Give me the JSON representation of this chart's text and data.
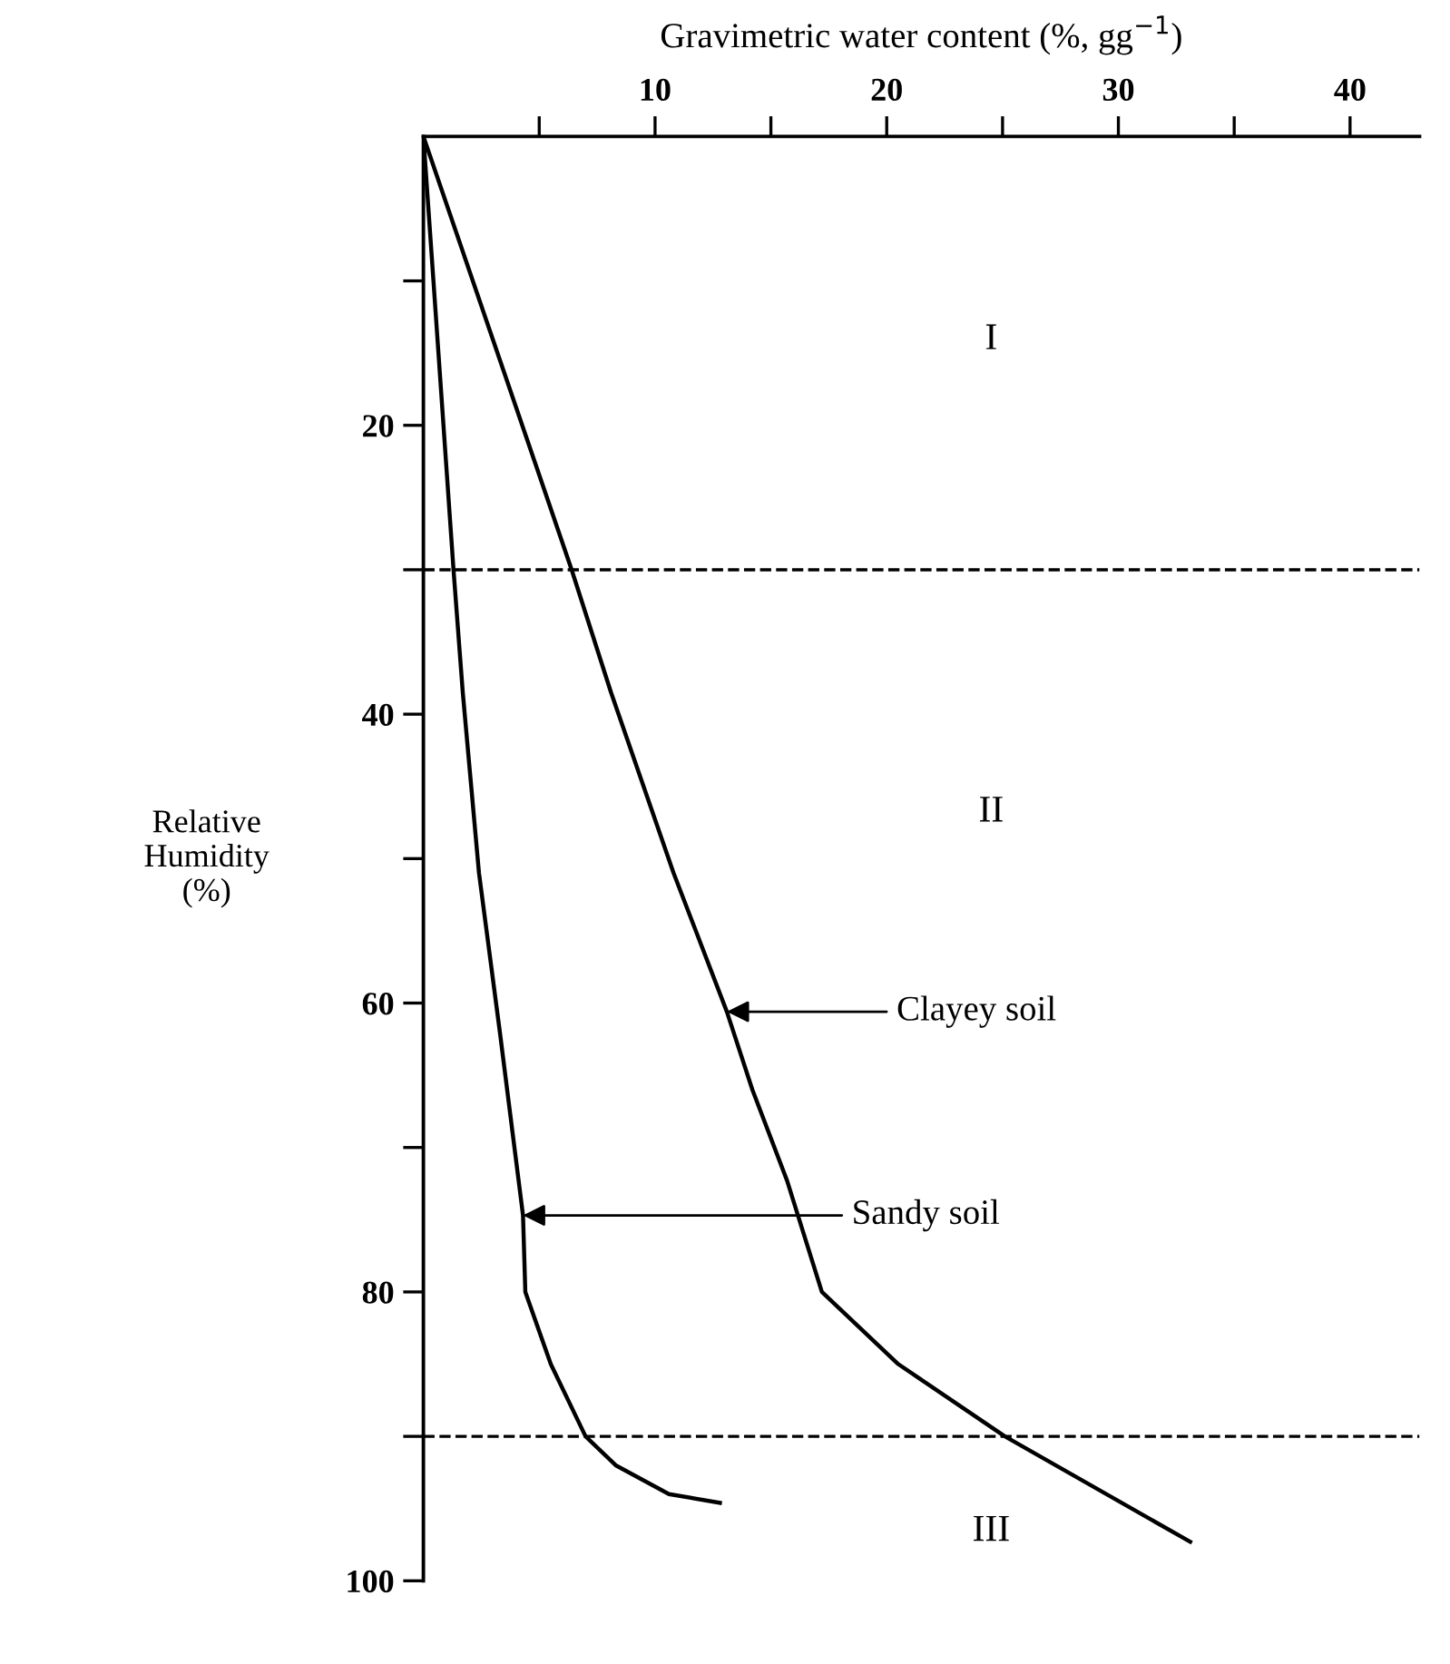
{
  "chart_data": {
    "type": "line",
    "xlabel": "Gravimetric water content (%, gg$^{−1}$)",
    "ylabel": "Relative\nHumidity\n(%)",
    "series": [
      {
        "name": "Clayey soil",
        "color": "#000000",
        "x": [
          0,
          6.4,
          8.1,
          10.8,
          13.1,
          14.2,
          15.7,
          17.2,
          20.5,
          25.1,
          33.1
        ],
        "values": [
          0,
          30,
          38.5,
          51,
          60.6,
          66,
          72.3,
          80,
          85,
          90,
          97.3
        ]
      },
      {
        "name": "Sandy soil",
        "color": "#000000",
        "x": [
          0,
          1.3,
          1.7,
          2.4,
          3.3,
          4.3,
          4.4,
          5.5,
          7.0,
          8.3,
          10.6,
          12.8
        ],
        "values": [
          0,
          30,
          38.5,
          51,
          62,
          74.7,
          80,
          85,
          90,
          92,
          94,
          94.6
        ]
      }
    ],
    "xlim": [
      0,
      43
    ],
    "ylim": [
      100,
      0
    ],
    "xticks": [
      {
        "value": 5,
        "label": null
      },
      10,
      {
        "value": 15,
        "label": null
      },
      20,
      {
        "value": 25,
        "label": null
      },
      30,
      {
        "value": 35,
        "label": null
      },
      40
    ],
    "yticks": [
      {
        "value": 10,
        "label": null
      },
      20,
      {
        "value": 30,
        "label": null
      },
      40,
      {
        "value": 50,
        "label": null
      },
      60,
      {
        "value": 70,
        "label": null
      },
      80,
      {
        "value": 90,
        "label": null
      },
      100
    ],
    "ref_lines": [
      {
        "axis": "y",
        "value": 30,
        "line_style": "dashed",
        "color": "#000000"
      },
      {
        "axis": "y",
        "value": 90,
        "line_style": "dashed",
        "color": "#000000"
      }
    ],
    "annotations": [
      "I",
      "II",
      "III"
    ],
    "line_style": "solid",
    "marker": "none",
    "grid": false
  }
}
